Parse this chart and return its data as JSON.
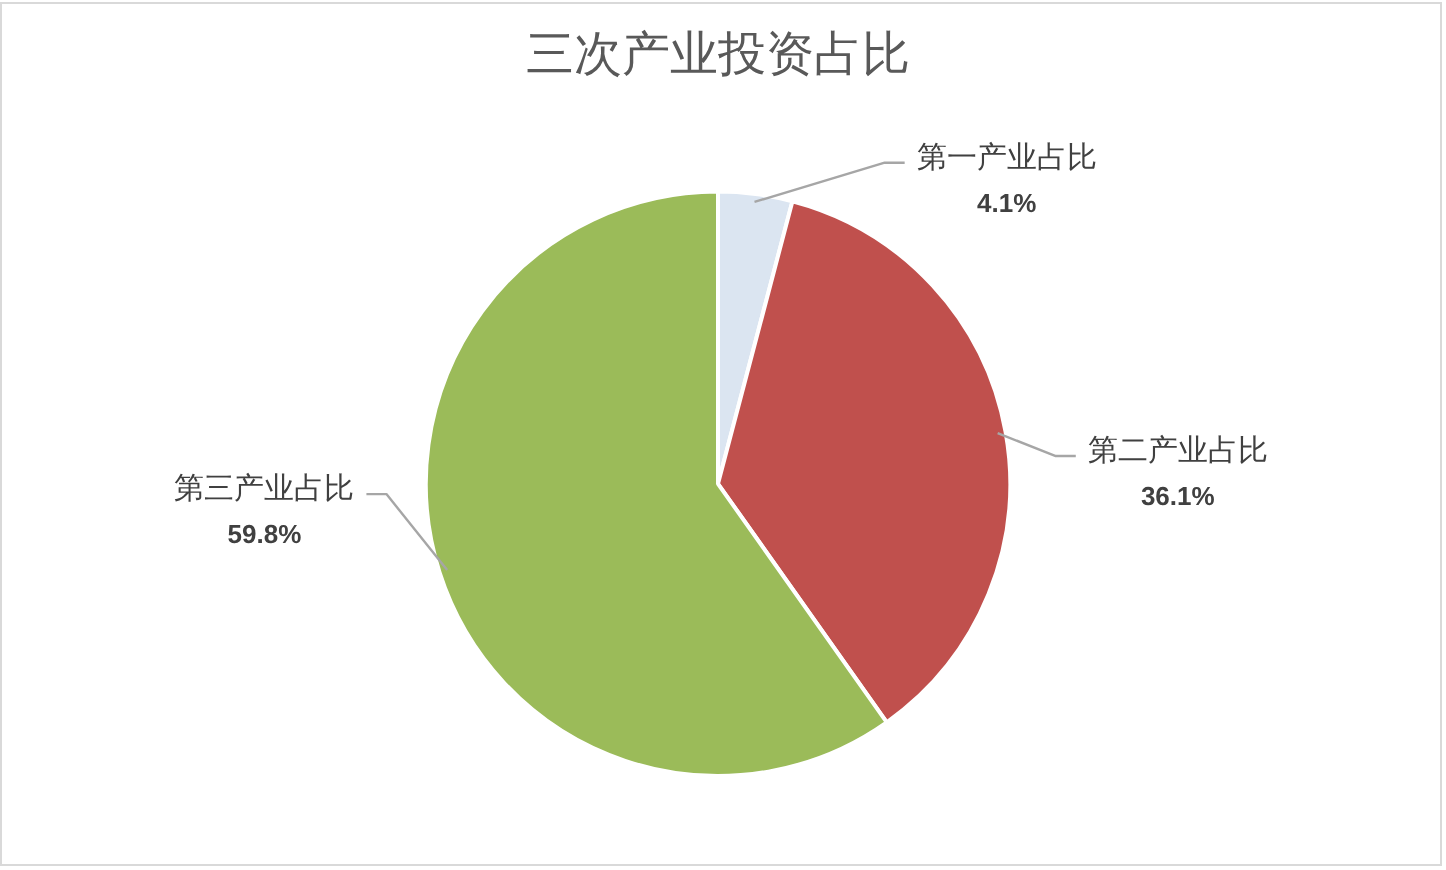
{
  "chart_data": {
    "type": "pie",
    "title": "三次产业投资占比",
    "categories": [
      "第一产业占比",
      "第二产业占比",
      "第三产业占比"
    ],
    "values": [
      4.1,
      36.1,
      59.8
    ],
    "colors": [
      "#dbe5f1",
      "#c0504d",
      "#9bbb59"
    ],
    "value_labels": [
      "4.1%",
      "36.1%",
      "59.8%"
    ]
  }
}
